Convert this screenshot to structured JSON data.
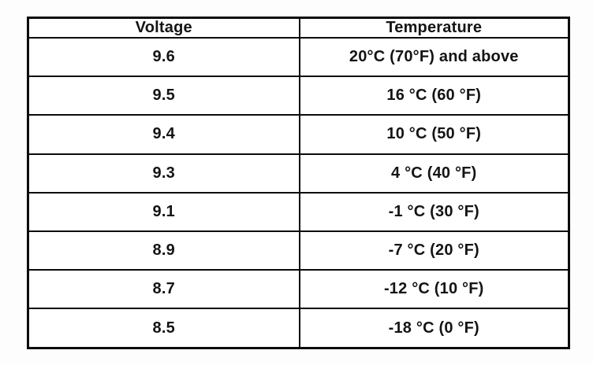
{
  "table": {
    "headers": [
      "Voltage",
      "Temperature"
    ],
    "rows": [
      [
        "9.6",
        "20°C (70°F) and above"
      ],
      [
        "9.5",
        "16 °C (60 °F)"
      ],
      [
        "9.4",
        "10 °C (50 °F)"
      ],
      [
        "9.3",
        "4 °C (40 °F)"
      ],
      [
        "9.1",
        "-1 °C (30 °F)"
      ],
      [
        "8.9",
        "-7 °C (20 °F)"
      ],
      [
        "8.7",
        "-12 °C (10 °F)"
      ],
      [
        "8.5",
        "-18 °C (0 °F)"
      ]
    ]
  }
}
